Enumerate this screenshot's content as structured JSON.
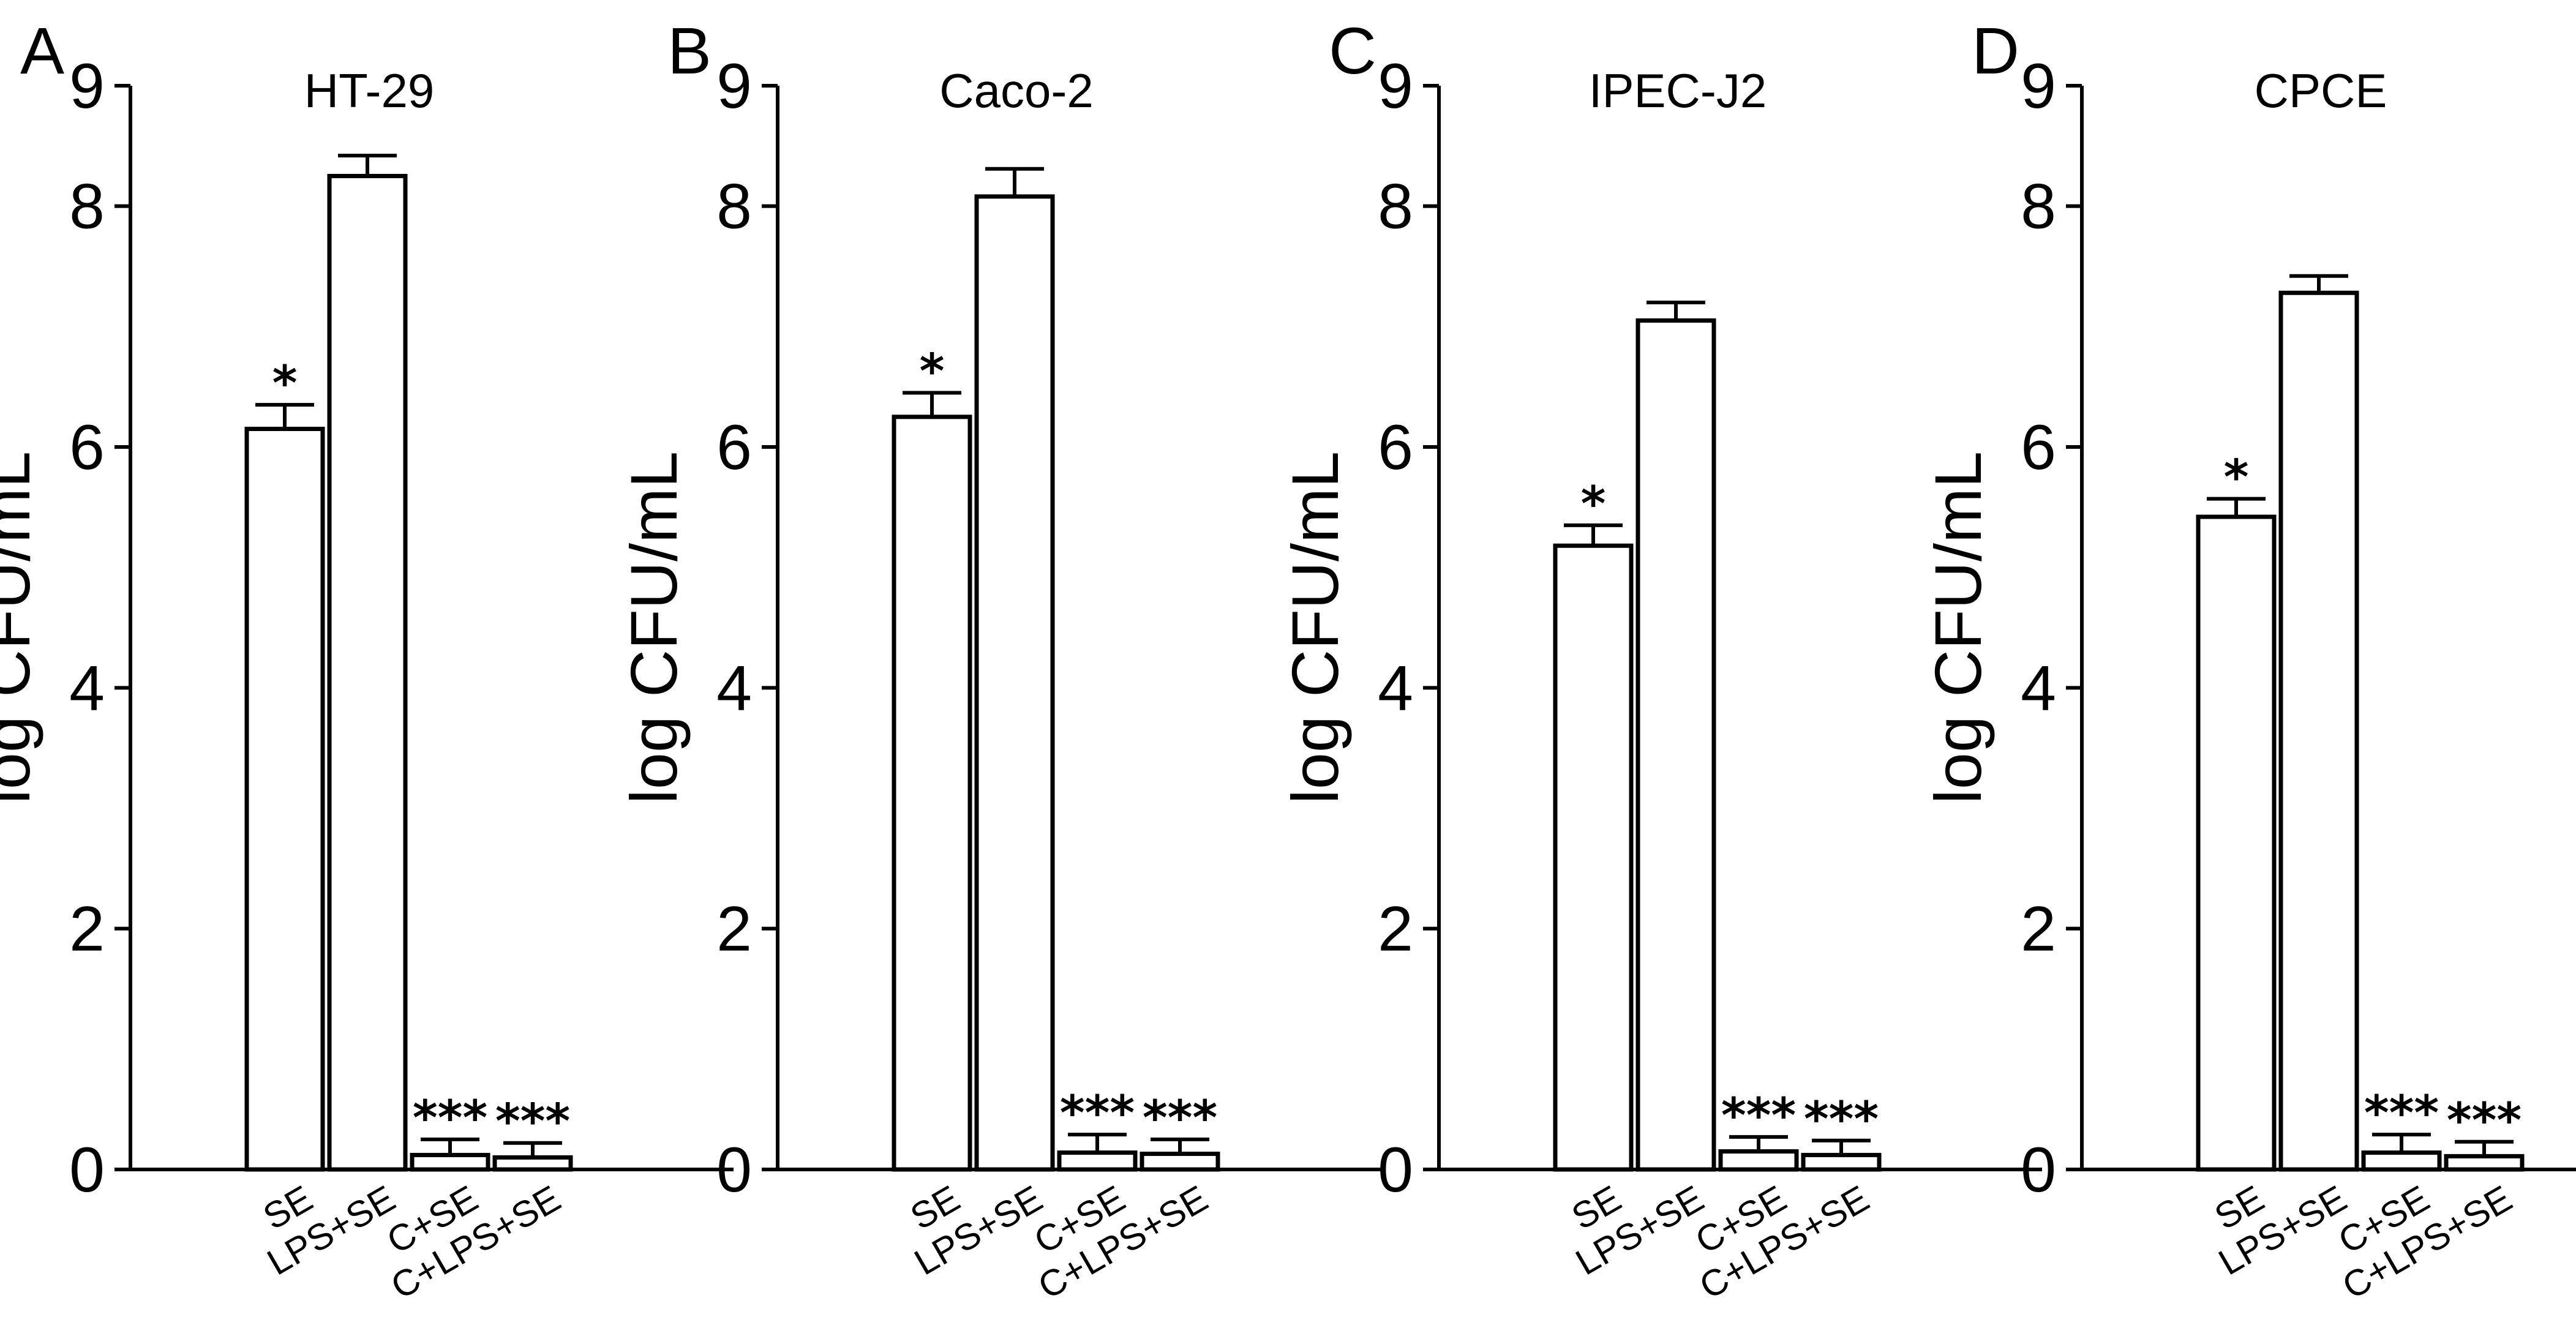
{
  "chart_data": [
    {
      "type": "bar",
      "panel": "A",
      "title": "HT-29",
      "ylabel": "log CFU/mL",
      "xlabel": "",
      "ylim": [
        0,
        9
      ],
      "yticks": [
        0,
        2,
        4,
        6,
        8,
        9
      ],
      "categories": [
        "SE",
        "LPS+SE",
        "C+SE",
        "C+LPS+SE"
      ],
      "values": [
        6.15,
        8.25,
        0.12,
        0.1
      ],
      "errors": [
        0.2,
        0.17,
        0.13,
        0.12
      ],
      "significance": [
        "*",
        "",
        "***",
        "***"
      ],
      "grid": false,
      "legend": "none"
    },
    {
      "type": "bar",
      "panel": "B",
      "title": "Caco-2",
      "ylabel": "log CFU/mL",
      "xlabel": "",
      "ylim": [
        0,
        9
      ],
      "yticks": [
        0,
        2,
        4,
        6,
        8,
        9
      ],
      "categories": [
        "SE",
        "LPS+SE",
        "C+SE",
        "C+LPS+SE"
      ],
      "values": [
        6.25,
        8.08,
        0.14,
        0.13
      ],
      "errors": [
        0.2,
        0.23,
        0.15,
        0.12
      ],
      "significance": [
        "*",
        "",
        "***",
        "***"
      ],
      "grid": false,
      "legend": "none"
    },
    {
      "type": "bar",
      "panel": "C",
      "title": "IPEC-J2",
      "ylabel": "log CFU/mL",
      "xlabel": "",
      "ylim": [
        0,
        9
      ],
      "yticks": [
        0,
        2,
        4,
        6,
        8,
        9
      ],
      "categories": [
        "SE",
        "LPS+SE",
        "C+SE",
        "C+LPS+SE"
      ],
      "values": [
        5.18,
        7.05,
        0.15,
        0.12
      ],
      "errors": [
        0.17,
        0.15,
        0.12,
        0.12
      ],
      "significance": [
        "*",
        "",
        "***",
        "***"
      ],
      "grid": false,
      "legend": "none"
    },
    {
      "type": "bar",
      "panel": "D",
      "title": "CPCE",
      "ylabel": "log CFU/mL",
      "xlabel": "",
      "ylim": [
        0,
        9
      ],
      "yticks": [
        0,
        2,
        4,
        6,
        8,
        9
      ],
      "categories": [
        "SE",
        "LPS+SE",
        "C+SE",
        "C+LPS+SE"
      ],
      "values": [
        5.42,
        7.28,
        0.14,
        0.11
      ],
      "errors": [
        0.15,
        0.14,
        0.15,
        0.12
      ],
      "significance": [
        "*",
        "",
        "***",
        "***"
      ],
      "grid": false,
      "legend": "none"
    }
  ]
}
